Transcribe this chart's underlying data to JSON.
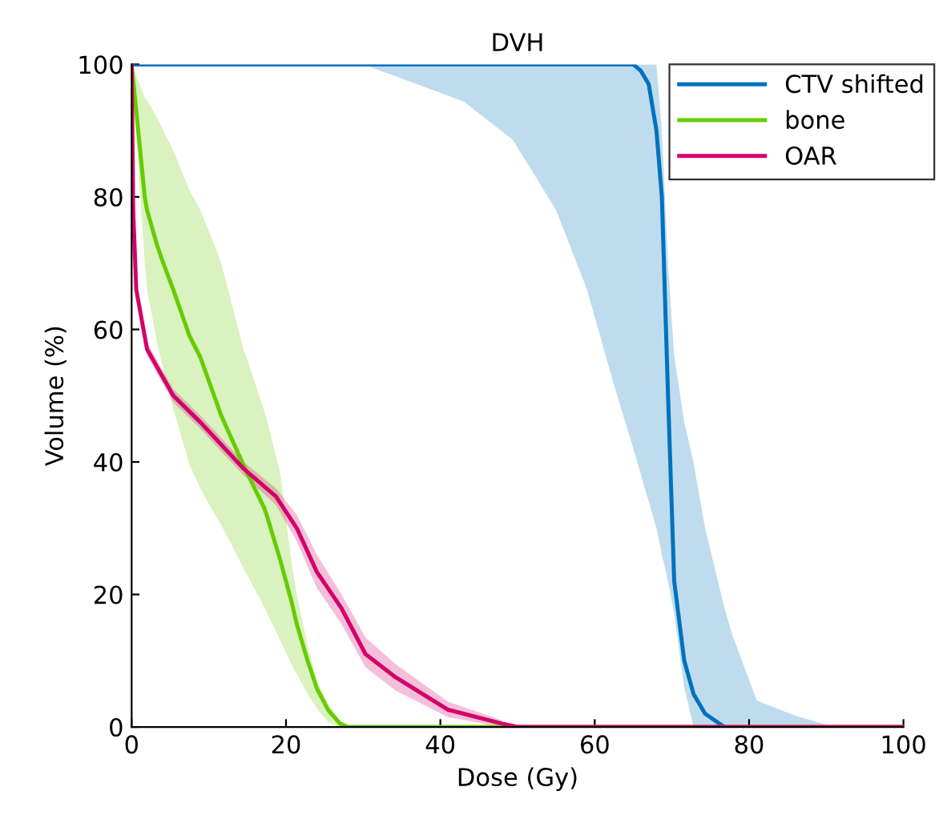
{
  "chart_data": {
    "type": "line",
    "title": "DVH",
    "xlabel": "Dose (Gy)",
    "ylabel": "Volume (%)",
    "xlim": [
      0,
      100
    ],
    "ylim": [
      0,
      100
    ],
    "xticks": [
      0,
      20,
      40,
      60,
      80,
      100
    ],
    "yticks": [
      0,
      20,
      40,
      60,
      80,
      100
    ],
    "grid": false,
    "legend": "top right",
    "marker": "none",
    "line_style": "solid",
    "series": [
      {
        "name": "CTV shifted",
        "color": "#0072bd",
        "x": [
          0,
          30,
          34,
          43,
          49.4,
          55,
          59,
          62.4,
          65,
          66,
          67,
          68,
          68.7,
          69.5,
          70.3,
          71.6,
          72.8,
          74.3,
          76.8,
          77.8,
          81,
          86,
          91,
          100
        ],
        "values": [
          100,
          100,
          100,
          100,
          100,
          100,
          100,
          100,
          100,
          99,
          97,
          90,
          80,
          50,
          22,
          10,
          5,
          2,
          0,
          null,
          null,
          null,
          null,
          null
        ],
        "lower": [
          100,
          100,
          98.3,
          94.4,
          88.6,
          78,
          66,
          52,
          42,
          38,
          34,
          30,
          26,
          22,
          17,
          6,
          0,
          0,
          0,
          0,
          0,
          0,
          0,
          0
        ],
        "upper": [
          100,
          100,
          100,
          100,
          100,
          100,
          100,
          100,
          100,
          100,
          100,
          100,
          90,
          70,
          56,
          46,
          40,
          30,
          18,
          14,
          4,
          1.7,
          0,
          0
        ]
      },
      {
        "name": "bone",
        "color": "#66cc00",
        "x": [
          0,
          1.7,
          2,
          3.3,
          4.1,
          5.4,
          7.5,
          8.9,
          11,
          11.6,
          14.5,
          15.1,
          17.2,
          17.6,
          19.3,
          20.7,
          21.4,
          22.8,
          24,
          25.5,
          27,
          28,
          29,
          100
        ],
        "values": [
          100,
          80,
          78,
          72.7,
          70,
          66,
          59,
          55.8,
          49,
          47,
          39.5,
          38,
          33,
          31.6,
          25,
          19,
          15.5,
          10,
          5.8,
          2.5,
          0.5,
          0,
          0,
          0
        ],
        "lower": [
          100,
          70,
          66,
          58,
          54,
          48,
          39.6,
          36,
          31.6,
          30.5,
          24,
          22.7,
          18,
          17,
          13,
          9.5,
          8,
          5,
          2.8,
          0.7,
          0,
          0,
          null,
          null
        ],
        "upper": [
          100,
          95,
          94.5,
          92,
          90,
          87,
          81,
          78,
          72,
          70,
          57,
          55,
          47.6,
          46,
          38,
          25,
          20,
          12.3,
          7,
          3.4,
          1,
          0.3,
          null,
          null
        ]
      },
      {
        "name": "OAR",
        "color": "#d4006a",
        "x": [
          0,
          0.2,
          0.6,
          2,
          5.4,
          8.9,
          14.5,
          18.7,
          21.4,
          24,
          27.2,
          30.3,
          34.2,
          41,
          48,
          50,
          100
        ],
        "values": [
          100,
          78,
          66,
          57,
          50,
          46,
          39,
          34.8,
          30,
          23.4,
          17.9,
          11,
          7.5,
          2.6,
          0.5,
          0,
          0
        ],
        "lower": [
          100,
          77,
          65,
          56,
          49,
          45,
          38,
          33.5,
          28,
          21,
          15.5,
          9,
          5.5,
          1.5,
          0,
          null,
          null
        ],
        "upper": [
          100,
          79,
          67,
          58,
          51,
          47,
          40,
          36,
          32,
          26,
          20,
          13.5,
          9.5,
          3.8,
          1,
          null,
          null
        ]
      }
    ]
  }
}
